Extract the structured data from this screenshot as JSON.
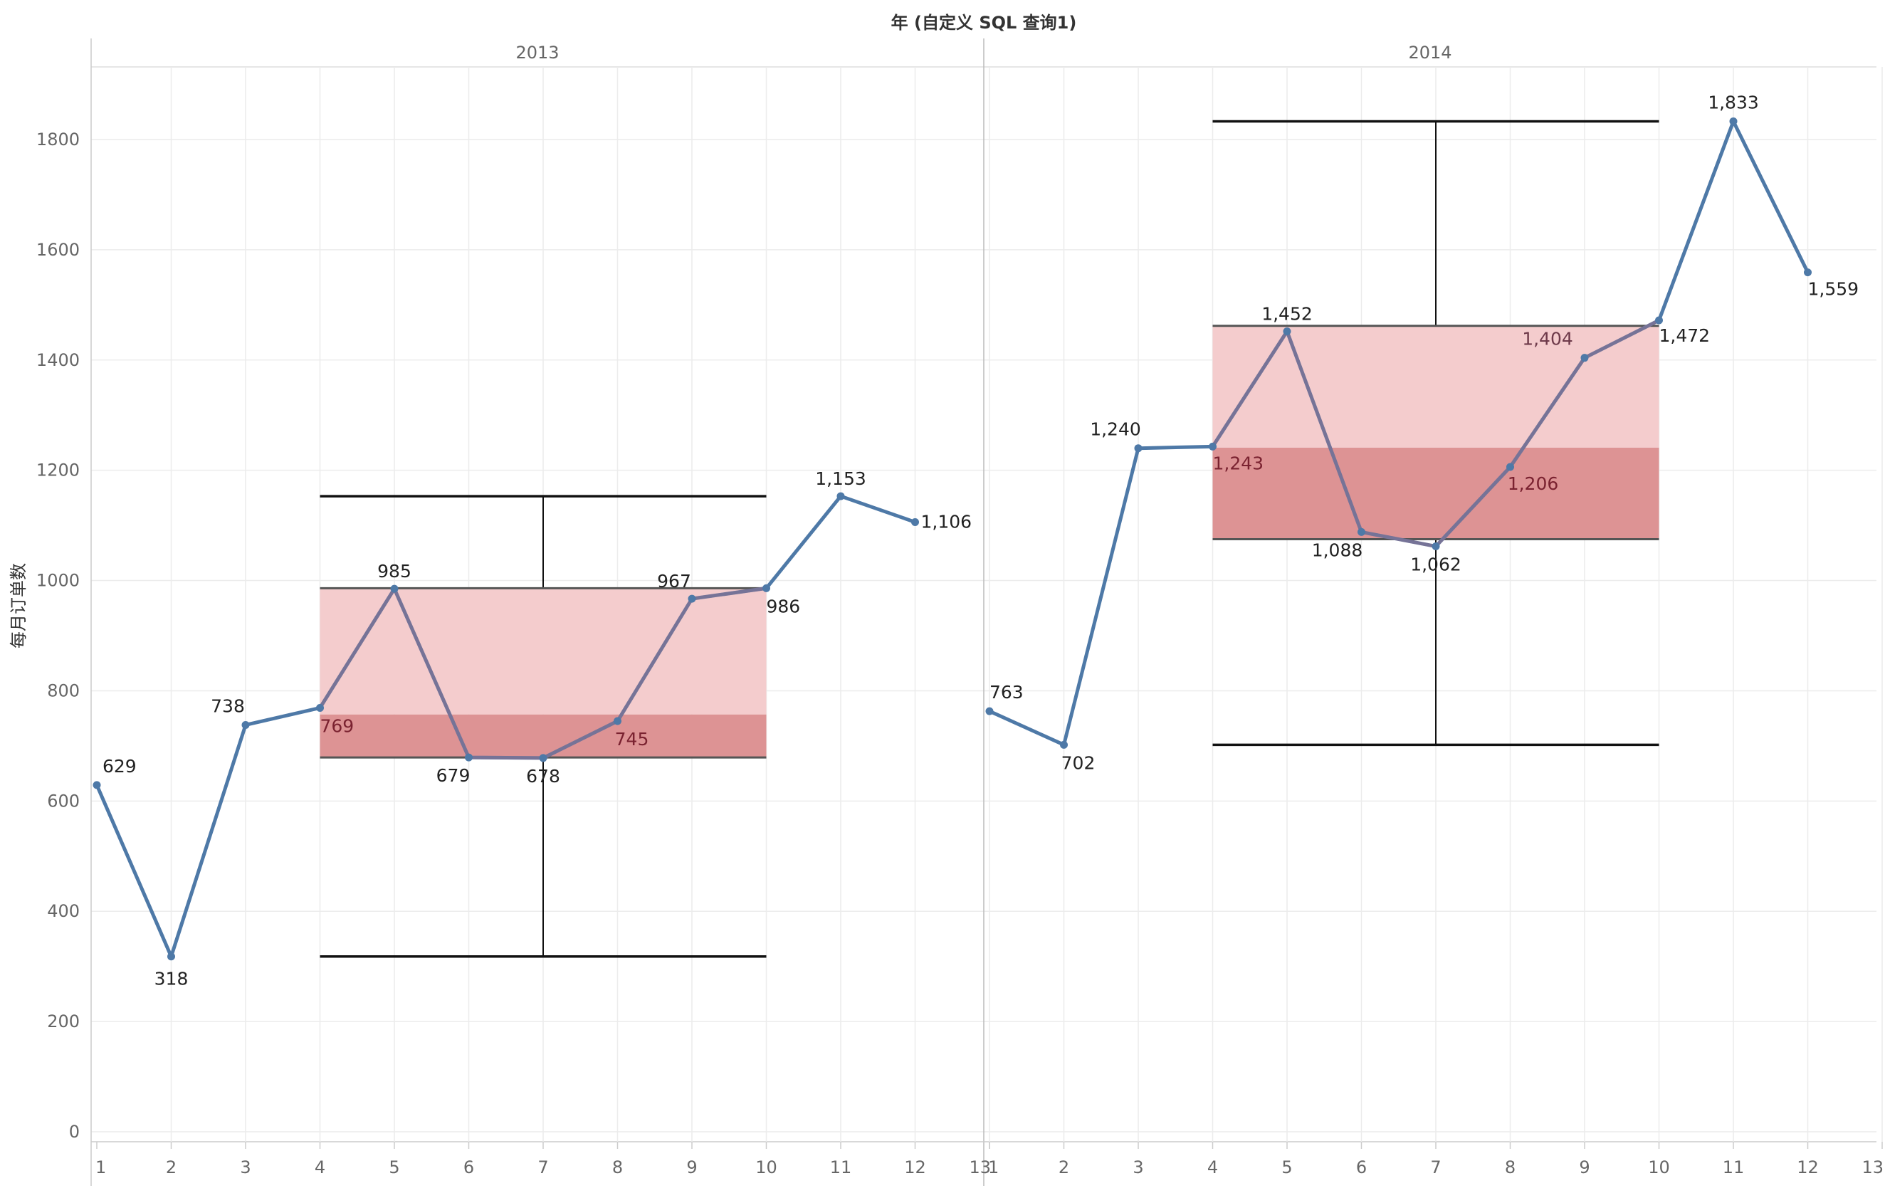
{
  "chart_data": {
    "type": "line",
    "title": "年 (自定义 SQL 查询1)",
    "ylabel": "每月订单数",
    "xlabel": "",
    "ylim": [
      0,
      1900
    ],
    "yticks": [
      0,
      200,
      400,
      600,
      800,
      1000,
      1200,
      1400,
      1600,
      1800
    ],
    "xticks": [
      1,
      2,
      3,
      4,
      5,
      6,
      7,
      8,
      9,
      10,
      11,
      12,
      13
    ],
    "grid": true,
    "legend": "none",
    "colors": {
      "line": "#4e79a7",
      "box_upper": "#f4cccd",
      "box_lower": "#dd9394",
      "box_edge": "#555555",
      "whisker": "#111111"
    },
    "panels": [
      {
        "name": "2013",
        "series": [
          {
            "x": [
              1,
              2,
              3,
              4,
              5,
              6,
              7,
              8,
              9,
              10,
              11,
              12
            ],
            "values": [
              629,
              318,
              738,
              769,
              985,
              679,
              678,
              745,
              967,
              986,
              1153,
              1106
            ],
            "labels": [
              "629",
              "318",
              "738",
              "769",
              "985",
              "679",
              "678",
              "745",
              "967",
              "986",
              "1,153",
              "1,106"
            ]
          }
        ],
        "box": {
          "x_start": 4,
          "x_end": 10,
          "whisker_low": 318,
          "q1": 679,
          "median": 757,
          "q3": 986,
          "whisker_high": 1153
        }
      },
      {
        "name": "2014",
        "series": [
          {
            "x": [
              1,
              2,
              3,
              4,
              5,
              6,
              7,
              8,
              9,
              10,
              11,
              12
            ],
            "values": [
              763,
              702,
              1240,
              1243,
              1452,
              1088,
              1062,
              1206,
              1404,
              1472,
              1833,
              1559
            ],
            "labels": [
              "763",
              "702",
              "1,240",
              "1,243",
              "1,452",
              "1,088",
              "1,062",
              "1,206",
              "1,404",
              "1,472",
              "1,833",
              "1,559"
            ]
          }
        ],
        "box": {
          "x_start": 4,
          "x_end": 10,
          "whisker_low": 702,
          "q1": 1075,
          "median": 1241,
          "q3": 1462,
          "whisker_high": 1833
        }
      }
    ]
  }
}
